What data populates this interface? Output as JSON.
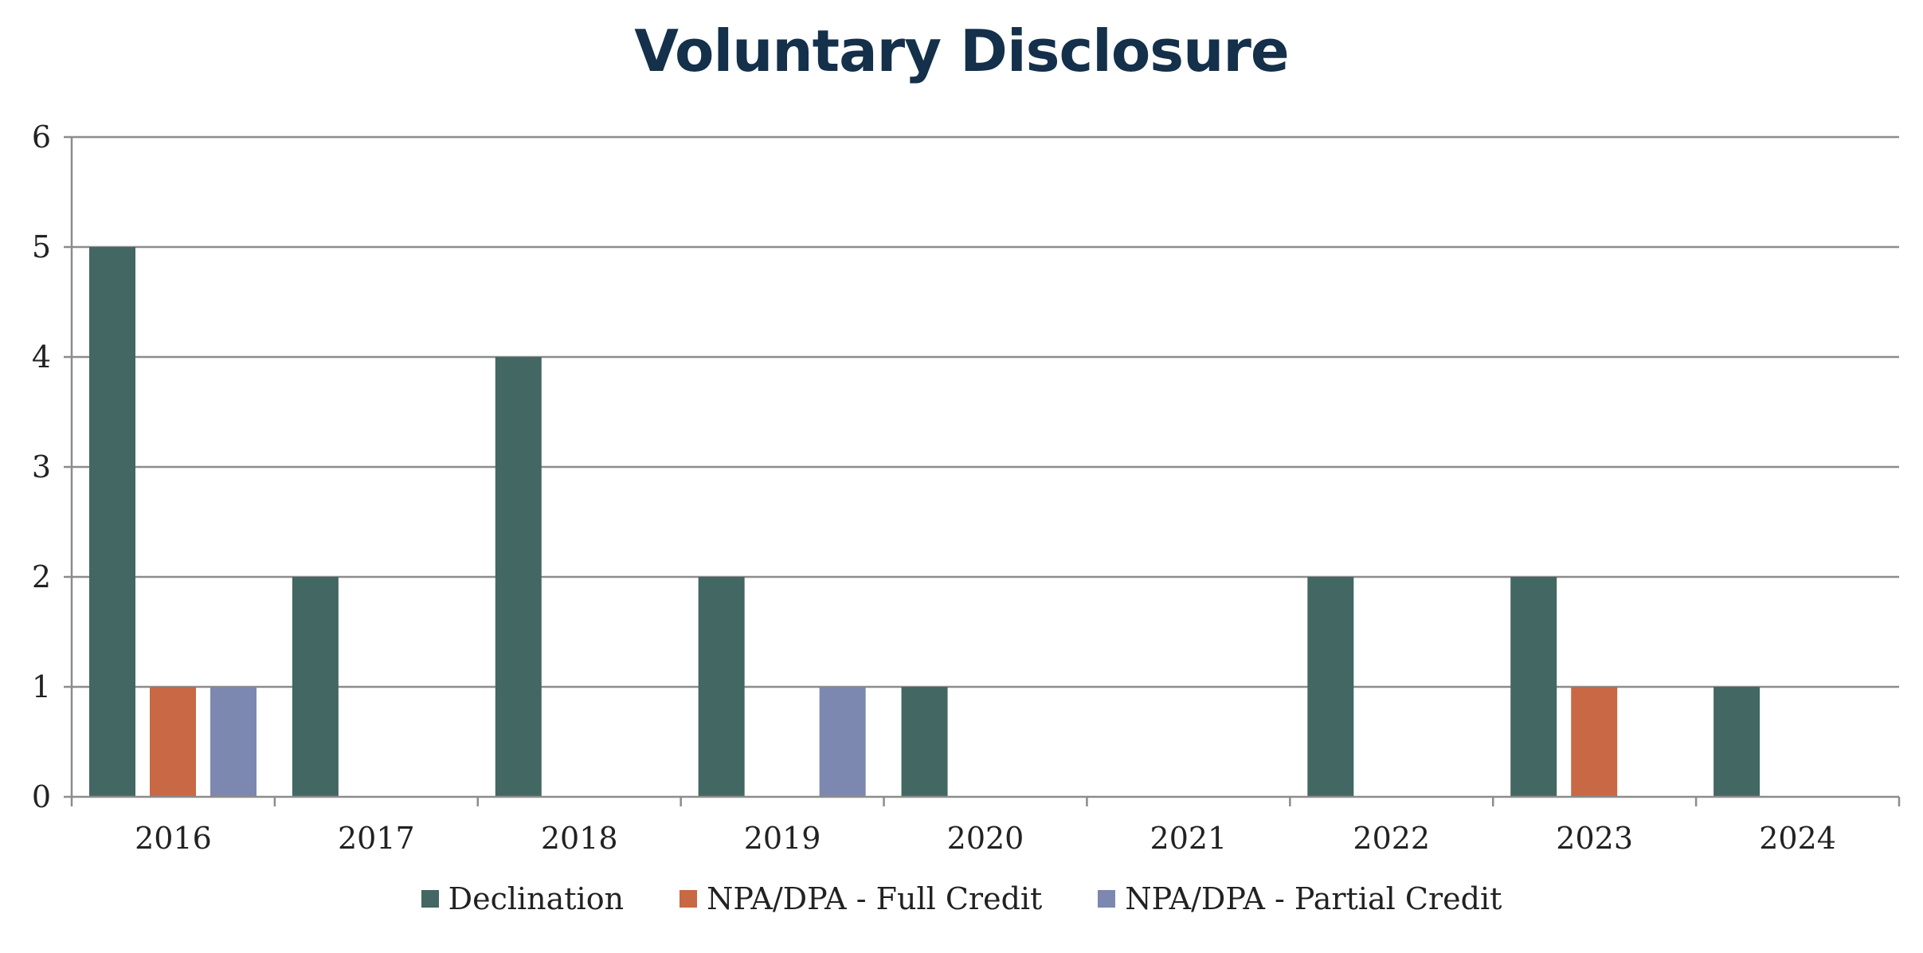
{
  "chart_data": {
    "type": "bar",
    "title": "Voluntary Disclosure",
    "xlabel": "",
    "ylabel": "",
    "categories": [
      "2016",
      "2017",
      "2018",
      "2019",
      "2020",
      "2021",
      "2022",
      "2023",
      "2024"
    ],
    "series": [
      {
        "name": "Declination",
        "color": "#436762",
        "values": [
          5,
          2,
          4,
          2,
          1,
          0,
          2,
          2,
          1
        ]
      },
      {
        "name": "NPA/DPA - Full Credit",
        "color": "#c86844",
        "values": [
          1,
          0,
          0,
          0,
          0,
          0,
          0,
          1,
          0
        ]
      },
      {
        "name": "NPA/DPA - Partial Credit",
        "color": "#7d88b0",
        "values": [
          1,
          0,
          0,
          1,
          0,
          0,
          0,
          0,
          0
        ]
      }
    ],
    "ylim": [
      0,
      6
    ],
    "yticks": [
      0,
      1,
      2,
      3,
      4,
      5,
      6
    ],
    "grid": true,
    "legend_position": "bottom"
  }
}
